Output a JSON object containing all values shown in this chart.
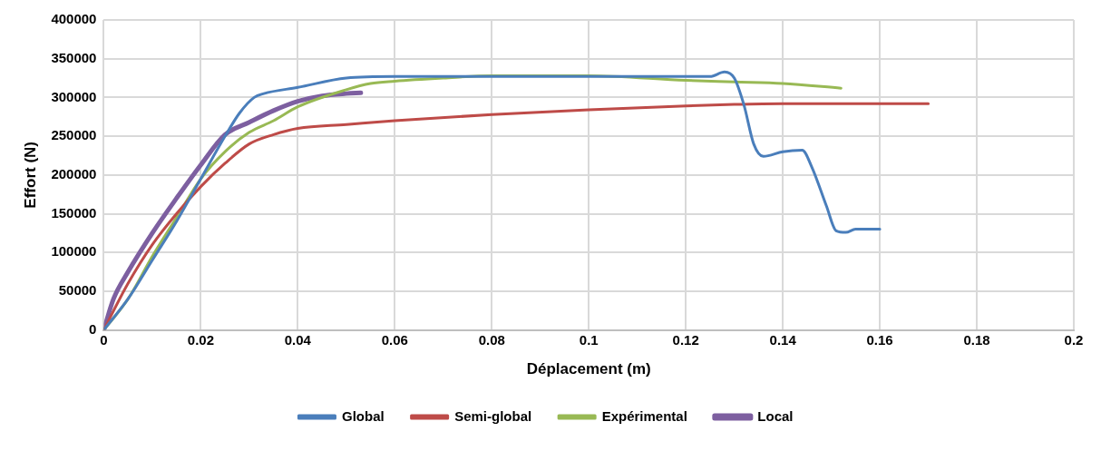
{
  "chart_data": {
    "type": "line",
    "xlabel": "Déplacement (m)",
    "ylabel": "Effort (N)",
    "xlim": [
      0,
      0.2
    ],
    "xticks": [
      0,
      0.02,
      0.04,
      0.06,
      0.08,
      0.1,
      0.12,
      0.14,
      0.16,
      0.18,
      0.2
    ],
    "ylim": [
      0,
      400000
    ],
    "yticks": [
      0,
      50000,
      100000,
      150000,
      200000,
      250000,
      300000,
      350000,
      400000
    ],
    "grid": true,
    "legend": "bottom",
    "marker": "none",
    "line_style": "solid",
    "series": [
      {
        "name": "Global",
        "color": "#4a7ebb",
        "x": [
          0,
          0.005,
          0.01,
          0.015,
          0.02,
          0.025,
          0.028,
          0.031,
          0.033,
          0.04,
          0.05,
          0.06,
          0.1,
          0.125,
          0.128,
          0.13,
          0.132,
          0.134,
          0.136,
          0.14,
          0.144,
          0.146,
          0.149,
          0.151,
          0.153,
          0.155,
          0.16
        ],
        "values": [
          0,
          40000,
          90000,
          140000,
          195000,
          250000,
          280000,
          300000,
          305000,
          313000,
          325000,
          327000,
          327000,
          327000,
          333000,
          325000,
          290000,
          240000,
          224000,
          230000,
          232000,
          210000,
          160000,
          128000,
          126000,
          130000,
          130000
        ]
      },
      {
        "name": "Semi-global",
        "color": "#be4b48",
        "x": [
          0,
          0.005,
          0.01,
          0.015,
          0.02,
          0.025,
          0.03,
          0.035,
          0.04,
          0.05,
          0.06,
          0.08,
          0.1,
          0.12,
          0.13,
          0.14,
          0.15,
          0.17
        ],
        "values": [
          0,
          60000,
          110000,
          150000,
          185000,
          215000,
          240000,
          252000,
          260000,
          265000,
          270000,
          278000,
          284000,
          289000,
          291000,
          292000,
          292000,
          292000
        ]
      },
      {
        "name": "Expérimental",
        "color": "#98b954",
        "x": [
          0,
          0.005,
          0.01,
          0.015,
          0.02,
          0.025,
          0.03,
          0.035,
          0.04,
          0.05,
          0.055,
          0.06,
          0.07,
          0.08,
          0.1,
          0.12,
          0.13,
          0.14,
          0.152
        ],
        "values": [
          0,
          40000,
          95000,
          145000,
          195000,
          230000,
          255000,
          270000,
          288000,
          310000,
          318000,
          321000,
          325000,
          328000,
          328000,
          322000,
          320000,
          318000,
          312000
        ]
      },
      {
        "name": "Local",
        "color": "#7d5fa0",
        "x": [
          0,
          0.002,
          0.005,
          0.01,
          0.015,
          0.02,
          0.025,
          0.03,
          0.035,
          0.04,
          0.045,
          0.05,
          0.053
        ],
        "values": [
          0,
          40000,
          75000,
          125000,
          170000,
          213000,
          252000,
          268000,
          283000,
          295000,
          302000,
          305000,
          306000
        ]
      }
    ]
  }
}
